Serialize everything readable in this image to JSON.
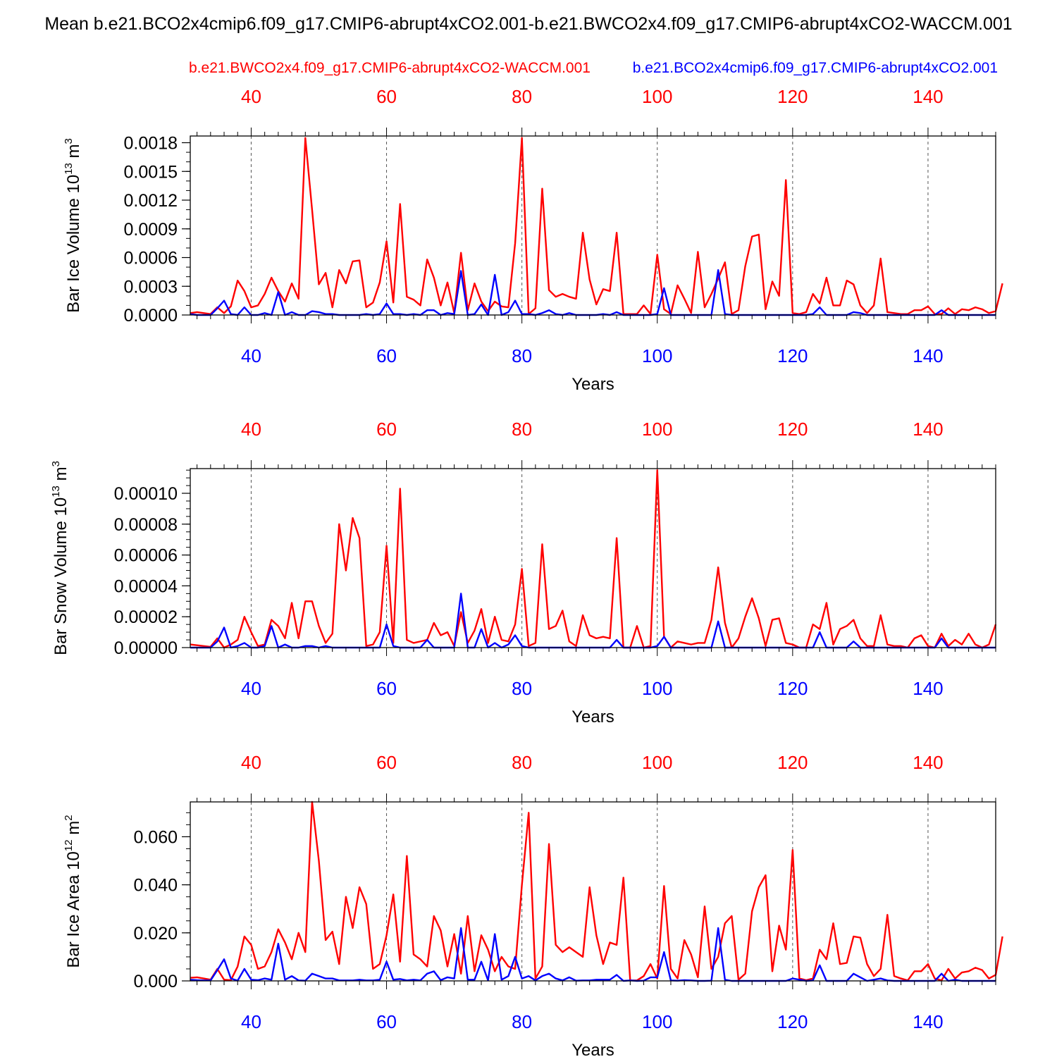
{
  "figure": {
    "title": "Mean b.e21.BCO2x4cmip6.f09_g17.CMIP6-abrupt4xCO2.001-b.e21.BWCO2x4.f09_g17.CMIP6-abrupt4xCO2-WACCM.001",
    "legend_red": "b.e21.BWCO2x4.f09_g17.CMIP6-abrupt4xCO2-WACCM.001",
    "legend_blue": "b.e21.BCO2x4cmip6.f09_g17.CMIP6-abrupt4xCO2.001",
    "colors": {
      "red": "#ff0000",
      "blue": "#0000ff",
      "grid": "#555555",
      "axis": "#000000"
    }
  },
  "chart_data": [
    {
      "type": "line",
      "ylabel_main": "Bar Ice Volume 10",
      "ylabel_exp": "13",
      "ylabel_unit": " m",
      "ylabel_unit_exp": "3",
      "xlabel": "Years",
      "xlim": [
        31,
        150
      ],
      "ylim": [
        0,
        0.00187
      ],
      "xticks": [
        40,
        60,
        80,
        100,
        120,
        140
      ],
      "xtick_labels": [
        "40",
        "60",
        "80",
        "100",
        "120",
        "140"
      ],
      "yticks": [
        0,
        0.0003,
        0.0006,
        0.0009,
        0.0012,
        0.0015,
        0.0018
      ],
      "ytick_labels": [
        "0.0000",
        "0.0003",
        "0.0006",
        "0.0009",
        "0.0012",
        "0.0015",
        "0.0018"
      ],
      "yminor_step": 0.0001,
      "x_start": 31,
      "series": [
        {
          "name": "b.e21.BWCO2x4.f09_g17.CMIP6-abrupt4xCO2-WACCM.001",
          "color": "#ff0000",
          "values": [
            2e-05,
            3e-05,
            2e-05,
            1e-05,
            8e-05,
            2e-05,
            9e-05,
            0.00036,
            0.00025,
            8e-05,
            0.0001,
            0.00022,
            0.00039,
            0.00025,
            0.00014,
            0.00033,
            0.00017,
            0.00185,
            0.0011,
            0.00032,
            0.00044,
            8e-05,
            0.00047,
            0.00033,
            0.00056,
            0.00057,
            8e-05,
            0.00013,
            0.00034,
            0.00077,
            0.00013,
            0.00116,
            0.00019,
            0.00016,
            0.0001,
            0.00058,
            0.00039,
            0.0001,
            0.00034,
            2e-05,
            0.00065,
            5e-05,
            0.00033,
            0.00014,
            4e-05,
            0.00014,
            9e-05,
            8e-05,
            0.00075,
            0.00185,
            1e-05,
            7e-05,
            0.00132,
            0.00026,
            0.00019,
            0.00022,
            0.00019,
            0.00017,
            0.00086,
            0.00037,
            0.00011,
            0.00027,
            0.00025,
            0.00086,
            1e-05,
            1e-05,
            1e-05,
            0.0001,
            1e-05,
            0.00063,
            6e-05,
            1e-05,
            0.00031,
            0.00017,
            2e-05,
            0.00066,
            8e-05,
            0.00022,
            0.00038,
            0.00055,
            1e-05,
            5e-05,
            0.00051,
            0.00082,
            0.00084,
            6e-05,
            0.00035,
            0.0002,
            0.00141,
            2e-05,
            1e-05,
            3e-05,
            0.00022,
            0.00012,
            0.00039,
            0.0001,
            0.0001,
            0.00036,
            0.00032,
            0.0001,
            2e-05,
            0.0001,
            0.00059,
            3e-05,
            2e-05,
            1e-05,
            1e-05,
            5e-05,
            5e-05,
            9e-05,
            1e-05,
            1e-05,
            7e-05,
            1e-05,
            6e-05,
            5e-05,
            8e-05,
            6e-05,
            2e-05,
            4e-05,
            0.00033
          ]
        },
        {
          "name": "b.e21.BCO2x4cmip6.f09_g17.CMIP6-abrupt4xCO2.001",
          "color": "#0000ff",
          "values": [
            1e-05,
            0.0,
            0.0,
            0.0,
            7e-05,
            0.00015,
            1e-05,
            0.0,
            8e-05,
            0.0,
            0.0,
            2e-05,
            0.0,
            0.00024,
            0.0,
            3e-05,
            0.0,
            0.0,
            4e-05,
            3e-05,
            1e-05,
            1e-05,
            0.0,
            0.0,
            0.0,
            0.0,
            1e-05,
            0.0,
            1e-05,
            0.00012,
            1e-05,
            1e-05,
            0.0,
            1e-05,
            0.0,
            5e-05,
            5e-05,
            0.0,
            2e-05,
            1e-05,
            0.00046,
            0.0,
            1e-05,
            0.00011,
            0.0,
            0.00042,
            0.0,
            3e-05,
            0.00015,
            1e-05,
            1e-05,
            0.0,
            2e-05,
            5e-05,
            1e-05,
            0.0,
            2e-05,
            0.0,
            0.0,
            0.0,
            0.0,
            1e-05,
            0.0,
            3e-05,
            0.0,
            0.0,
            0.0,
            0.0,
            0.0,
            1e-05,
            0.00028,
            0.0,
            0.0,
            0.0,
            0.0,
            0.0,
            0.0,
            0.0,
            0.00047,
            1e-05,
            0.0,
            0.0,
            0.0,
            0.0,
            0.0,
            0.0,
            0.0,
            0.0,
            0.0,
            0.0,
            0.0,
            0.0,
            1e-05,
            8e-05,
            0.0,
            0.0,
            0.0,
            0.0,
            3e-05,
            2e-05,
            0.0,
            0.0,
            0.0,
            0.0,
            0.0,
            0.0,
            0.0,
            0.0,
            0.0,
            0.0,
            0.0,
            5e-05,
            0.0,
            0.0,
            0.0,
            0.0,
            0.0,
            0.0,
            0.0,
            0.0
          ]
        }
      ]
    },
    {
      "type": "line",
      "ylabel_main": "Bar Snow Volume 10",
      "ylabel_exp": "13",
      "ylabel_unit": " m",
      "ylabel_unit_exp": "3",
      "xlabel": "Years",
      "xlim": [
        31,
        150
      ],
      "ylim": [
        0,
        0.000116
      ],
      "xticks": [
        40,
        60,
        80,
        100,
        120,
        140
      ],
      "xtick_labels": [
        "40",
        "60",
        "80",
        "100",
        "120",
        "140"
      ],
      "yticks": [
        0,
        2e-05,
        4e-05,
        6e-05,
        8e-05,
        0.0001
      ],
      "ytick_labels": [
        "0.00000",
        "0.00002",
        "0.00004",
        "0.00006",
        "0.00008",
        "0.00010"
      ],
      "yminor_step": 5e-06,
      "x_start": 31,
      "series": [
        {
          "name": "b.e21.BWCO2x4.f09_g17.CMIP6-abrupt4xCO2-WACCM.001",
          "color": "#ff0000",
          "values": [
            2e-06,
            1.5e-06,
            1e-06,
            5e-07,
            6e-06,
            0.0,
            2e-06,
            5e-06,
            2e-05,
            1e-05,
            1e-06,
            2e-06,
            1.8e-05,
            1.4e-05,
            6e-06,
            2.9e-05,
            6e-06,
            3e-05,
            3e-05,
            1.4e-05,
            3e-06,
            9e-06,
            8e-05,
            5e-05,
            8.4e-05,
            7.1e-05,
            1e-06,
            2e-06,
            1e-05,
            6.6e-05,
            3e-06,
            0.000103,
            5e-06,
            3e-06,
            4e-06,
            5e-06,
            1.6e-05,
            8e-06,
            1e-05,
            1e-06,
            2.3e-05,
            3e-06,
            1.1e-05,
            2.5e-05,
            3e-06,
            2e-05,
            5e-06,
            4e-06,
            1.5e-05,
            5.1e-05,
            1e-06,
            3e-06,
            6.7e-05,
            1.2e-05,
            1.4e-05,
            2.4e-05,
            4e-06,
            1e-06,
            2.1e-05,
            8e-06,
            6e-06,
            7e-06,
            6e-06,
            7.1e-05,
            0.0,
            0.0,
            1.4e-05,
            0.0,
            1e-06,
            0.000115,
            7e-06,
            0.0,
            4e-06,
            3e-06,
            2e-06,
            3e-06,
            3e-06,
            1.8e-05,
            5.2e-05,
            1.6e-05,
            0.0,
            6e-06,
            2e-05,
            3.2e-05,
            1.9e-05,
            1e-06,
            1.8e-05,
            1.9e-05,
            3e-06,
            2e-06,
            0.0,
            0.0,
            1.5e-05,
            1.2e-05,
            2.9e-05,
            2e-06,
            1.2e-05,
            1.4e-05,
            1.8e-05,
            6e-06,
            1e-06,
            1e-06,
            2.1e-05,
            2e-06,
            1e-06,
            1e-06,
            0.0,
            6e-06,
            8e-06,
            1e-06,
            0.0,
            9e-06,
            1e-06,
            5e-06,
            2e-06,
            9e-06,
            2e-06,
            0.0,
            2e-06,
            1.5e-05
          ]
        },
        {
          "name": "b.e21.BCO2x4cmip6.f09_g17.CMIP6-abrupt4xCO2.001",
          "color": "#0000ff",
          "values": [
            0.0,
            0.0,
            0.0,
            0.0,
            4e-06,
            1.3e-05,
            0.0,
            1e-06,
            3e-06,
            0.0,
            0.0,
            1e-06,
            1.4e-05,
            0.0,
            2e-06,
            0.0,
            0.0,
            1e-06,
            1e-06,
            0.0,
            1e-06,
            0.0,
            0.0,
            0.0,
            0.0,
            0.0,
            0.0,
            0.0,
            0.0,
            1.5e-05,
            1e-06,
            0.0,
            0.0,
            0.0,
            0.0,
            5e-06,
            0.0,
            0.0,
            0.0,
            0.0,
            3.5e-05,
            0.0,
            0.0,
            1.2e-05,
            0.0,
            3e-06,
            0.0,
            2e-06,
            8e-06,
            1e-06,
            0.0,
            0.0,
            0.0,
            0.0,
            0.0,
            0.0,
            0.0,
            0.0,
            0.0,
            0.0,
            0.0,
            0.0,
            0.0,
            5e-06,
            0.0,
            0.0,
            0.0,
            0.0,
            0.0,
            1e-06,
            7e-06,
            0.0,
            0.0,
            0.0,
            0.0,
            0.0,
            0.0,
            0.0,
            1.7e-05,
            0.0,
            0.0,
            0.0,
            0.0,
            0.0,
            0.0,
            0.0,
            0.0,
            0.0,
            0.0,
            0.0,
            0.0,
            0.0,
            0.0,
            1e-05,
            0.0,
            0.0,
            0.0,
            0.0,
            4e-06,
            0.0,
            0.0,
            0.0,
            0.0,
            0.0,
            0.0,
            0.0,
            0.0,
            0.0,
            0.0,
            0.0,
            0.0,
            6e-06,
            0.0,
            0.0,
            0.0,
            0.0,
            0.0,
            0.0,
            0.0,
            0.0
          ]
        }
      ]
    },
    {
      "type": "line",
      "ylabel_main": "Bar Ice Area 10",
      "ylabel_exp": "12",
      "ylabel_unit": " m",
      "ylabel_unit_exp": "2",
      "xlabel": "Years",
      "xlim": [
        31,
        150
      ],
      "ylim": [
        0,
        0.0745
      ],
      "xticks": [
        40,
        60,
        80,
        100,
        120,
        140
      ],
      "xtick_labels": [
        "40",
        "60",
        "80",
        "100",
        "120",
        "140"
      ],
      "yticks": [
        0,
        0.02,
        0.04,
        0.06
      ],
      "ytick_labels": [
        "0.000",
        "0.020",
        "0.040",
        "0.060"
      ],
      "yminor_step": 0.005,
      "x_start": 31,
      "series": [
        {
          "name": "b.e21.BWCO2x4.f09_g17.CMIP6-abrupt4xCO2-WACCM.001",
          "color": "#ff0000",
          "values": [
            0.0013,
            0.0015,
            0.001,
            0.0005,
            0.005,
            0.0005,
            0.0003,
            0.006,
            0.0185,
            0.015,
            0.005,
            0.006,
            0.012,
            0.0215,
            0.016,
            0.009,
            0.02,
            0.012,
            0.0745,
            0.05,
            0.017,
            0.0205,
            0.007,
            0.035,
            0.022,
            0.039,
            0.032,
            0.005,
            0.007,
            0.019,
            0.036,
            0.008,
            0.052,
            0.011,
            0.009,
            0.006,
            0.027,
            0.021,
            0.006,
            0.0195,
            0.003,
            0.027,
            0.004,
            0.019,
            0.013,
            0.004,
            0.01,
            0.006,
            0.005,
            0.04,
            0.07,
            0.001,
            0.006,
            0.057,
            0.015,
            0.012,
            0.014,
            0.012,
            0.01,
            0.039,
            0.019,
            0.007,
            0.016,
            0.015,
            0.043,
            0.0002,
            0.0002,
            0.002,
            0.007,
            0.001,
            0.0395,
            0.005,
            0.001,
            0.017,
            0.011,
            0.0015,
            0.031,
            0.005,
            0.01,
            0.024,
            0.027,
            0.0005,
            0.003,
            0.029,
            0.039,
            0.044,
            0.004,
            0.023,
            0.013,
            0.0545,
            0.001,
            0.0003,
            0.001,
            0.013,
            0.009,
            0.024,
            0.007,
            0.0075,
            0.0185,
            0.018,
            0.007,
            0.002,
            0.005,
            0.0275,
            0.002,
            0.001,
            0.0002,
            0.004,
            0.004,
            0.007,
            0.001,
            0.0002,
            0.005,
            0.001,
            0.0035,
            0.004,
            0.0055,
            0.0045,
            0.001,
            0.0025,
            0.0185
          ]
        },
        {
          "name": "b.e21.BCO2x4cmip6.f09_g17.CMIP6-abrupt4xCO2.001",
          "color": "#0000ff",
          "values": [
            0.0005,
            0.0003,
            0.0002,
            0.0002,
            0.0045,
            0.009,
            0.001,
            0.0001,
            0.005,
            0.0005,
            0.0003,
            0.001,
            0.0005,
            0.0155,
            0.0005,
            0.002,
            0.0002,
            0.0001,
            0.003,
            0.002,
            0.001,
            0.001,
            0.0002,
            0.0002,
            0.0002,
            0.0005,
            0.0002,
            0.0002,
            0.0005,
            0.008,
            0.0005,
            0.0008,
            0.0002,
            0.0005,
            0.0002,
            0.003,
            0.004,
            0.0003,
            0.0015,
            0.001,
            0.022,
            0.0005,
            0.0005,
            0.008,
            0.0002,
            0.0195,
            0.0005,
            0.002,
            0.01,
            0.001,
            0.002,
            0.0002,
            0.002,
            0.003,
            0.001,
            0.0002,
            0.0015,
            0.0001,
            0.0002,
            0.0002,
            0.0005,
            0.0005,
            0.0005,
            0.0025,
            0.0,
            0.0002,
            0.0,
            0.0001,
            0.0015,
            0.0015,
            0.012,
            0.0002,
            0.0001,
            0.0003,
            0.0002,
            0.0,
            0.0,
            0.0001,
            0.022,
            0.0005,
            0.0,
            0.0,
            0.0,
            0.0,
            0.0,
            0.0,
            0.0,
            0.0,
            0.0,
            0.001,
            0.0005,
            0.0,
            0.0002,
            0.0065,
            0.0,
            0.0,
            0.0,
            0.0,
            0.003,
            0.0015,
            0.0,
            0.0005,
            0.001,
            0.0002,
            0.0,
            0.0,
            0.0,
            0.0,
            0.0,
            0.0,
            0.0,
            0.003,
            0.0,
            0.0005,
            0.0,
            0.0,
            0.0,
            0.0,
            0.0,
            0.0
          ]
        }
      ]
    }
  ]
}
